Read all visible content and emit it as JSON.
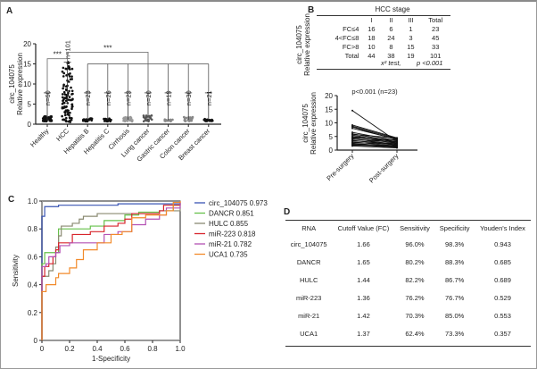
{
  "panels": {
    "a": "A",
    "b": "B",
    "c": "C",
    "d": "D"
  },
  "chart_data": [
    {
      "type": "scatter",
      "panel": "A",
      "ylabel": "circ_104075\nRelative expression",
      "ylabel_lines": [
        "circ_104075",
        "Relative expression"
      ],
      "ylim": [
        0,
        20
      ],
      "yticks": [
        0,
        5,
        10,
        15,
        20
      ],
      "categories": [
        "Healthy",
        "HCC",
        "Hepatitis B",
        "Hepatitis C",
        "Cirrhosis",
        "Lung cancer",
        "Gastric cancer",
        "Colon cancer",
        "Breast cancer"
      ],
      "n_labels": [
        "n=60",
        "n=101",
        "n=23",
        "n=26",
        "n=23",
        "n=20",
        "n=19",
        "n=30",
        "n=21"
      ],
      "approx_max": [
        2,
        15.5,
        1.5,
        1.5,
        1.8,
        2.2,
        1.2,
        1.8,
        1.3
      ],
      "approx_median": [
        1,
        5,
        1,
        1,
        1.1,
        1.2,
        1,
        1.1,
        1
      ],
      "point_colors": [
        "#111111",
        "#111111",
        "#111111",
        "#111111",
        "#999999",
        "#555555",
        "#888888",
        "#888888",
        "#111111"
      ],
      "annotations": [
        "***",
        "***"
      ]
    },
    {
      "type": "table",
      "panel": "B-top",
      "ylabel_lines": [
        "circ_104075",
        "Relative expression"
      ],
      "title": "HCC stage",
      "columns": [
        "",
        "I",
        "II",
        "III",
        "Total"
      ],
      "rows": [
        [
          "FC≤4",
          "16",
          "6",
          "1",
          "23"
        ],
        [
          "4<FC≤8",
          "18",
          "24",
          "3",
          "45"
        ],
        [
          "FC>8",
          "10",
          "8",
          "15",
          "33"
        ],
        [
          "Total",
          "44",
          "38",
          "19",
          "101"
        ]
      ],
      "footer_test": "x² test,",
      "footer_p": "p <0.001"
    },
    {
      "type": "line",
      "panel": "B-bottom",
      "ylabel_lines": [
        "circ_104075",
        "Relative expression"
      ],
      "ylim": [
        0,
        20
      ],
      "yticks": [
        0,
        5,
        10,
        15,
        20
      ],
      "categories": [
        "Pre-surgery",
        "Post-surgery"
      ],
      "annotation": "p<0.001 (n=23)",
      "pairs": [
        [
          14.5,
          3.2
        ],
        [
          9.2,
          4.5
        ],
        [
          8.8,
          4.2
        ],
        [
          8.5,
          3.8
        ],
        [
          8.0,
          4.0
        ],
        [
          6.5,
          3.5
        ],
        [
          6.0,
          3.0
        ],
        [
          5.8,
          4.4
        ],
        [
          5.5,
          2.8
        ],
        [
          5.0,
          3.6
        ],
        [
          4.8,
          2.5
        ],
        [
          4.5,
          3.2
        ],
        [
          4.2,
          2.0
        ],
        [
          4.0,
          2.8
        ],
        [
          3.6,
          1.8
        ],
        [
          3.4,
          2.4
        ],
        [
          3.0,
          1.5
        ],
        [
          2.8,
          2.2
        ],
        [
          2.5,
          1.2
        ],
        [
          2.2,
          1.6
        ],
        [
          2.0,
          1.0
        ],
        [
          1.8,
          1.4
        ],
        [
          1.5,
          0.8
        ]
      ]
    },
    {
      "type": "line",
      "panel": "C",
      "xlabel": "1-Specificity",
      "ylabel": "Sensitivity",
      "xlim": [
        0,
        1
      ],
      "ylim": [
        0,
        1
      ],
      "xticks": [
        "0",
        "0.2",
        "0.4",
        "0.6",
        "0.8",
        "1.0"
      ],
      "yticks": [
        "0",
        "0.2",
        "0.4",
        "0.6",
        "0.8",
        "1.0"
      ],
      "series": [
        {
          "name": "circ_104075",
          "auc": "0.973",
          "legend": "circ_104075 0.973",
          "color": "#3a55b4",
          "points": [
            [
              0,
              0
            ],
            [
              0,
              0.89
            ],
            [
              0.02,
              0.89
            ],
            [
              0.02,
              0.96
            ],
            [
              0.12,
              0.96
            ],
            [
              0.12,
              0.97
            ],
            [
              0.35,
              0.97
            ],
            [
              0.55,
              0.98
            ],
            [
              0.9,
              0.98
            ],
            [
              1,
              1
            ]
          ]
        },
        {
          "name": "DANCR",
          "auc": "0.851",
          "legend": "DANCR  0.851",
          "color": "#66c04a",
          "points": [
            [
              0,
              0
            ],
            [
              0,
              0.55
            ],
            [
              0.02,
              0.55
            ],
            [
              0.02,
              0.63
            ],
            [
              0.1,
              0.63
            ],
            [
              0.12,
              0.8
            ],
            [
              0.3,
              0.8
            ],
            [
              0.35,
              0.82
            ],
            [
              0.45,
              0.86
            ],
            [
              0.6,
              0.9
            ],
            [
              0.7,
              0.92
            ],
            [
              0.85,
              0.93
            ],
            [
              0.95,
              0.93
            ],
            [
              0.95,
              0.97
            ],
            [
              1,
              0.98
            ]
          ]
        },
        {
          "name": "HULC",
          "auc": "0.855",
          "legend": "HULC  0.855",
          "color": "#8a8a72",
          "points": [
            [
              0,
              0
            ],
            [
              0,
              0.46
            ],
            [
              0.03,
              0.46
            ],
            [
              0.05,
              0.5
            ],
            [
              0.08,
              0.55
            ],
            [
              0.1,
              0.67
            ],
            [
              0.12,
              0.75
            ],
            [
              0.14,
              0.82
            ],
            [
              0.22,
              0.84
            ],
            [
              0.27,
              0.87
            ],
            [
              0.3,
              0.89
            ],
            [
              0.4,
              0.91
            ],
            [
              0.6,
              0.91
            ],
            [
              0.85,
              0.93
            ],
            [
              0.99,
              0.93
            ],
            [
              1,
              0.96
            ]
          ]
        },
        {
          "name": "miR-223",
          "auc": "0.818",
          "legend": "miR-223  0.818",
          "color": "#d8252c",
          "points": [
            [
              0,
              0
            ],
            [
              0,
              0.46
            ],
            [
              0.02,
              0.46
            ],
            [
              0.02,
              0.53
            ],
            [
              0.05,
              0.55
            ],
            [
              0.08,
              0.6
            ],
            [
              0.1,
              0.65
            ],
            [
              0.12,
              0.7
            ],
            [
              0.22,
              0.7
            ],
            [
              0.22,
              0.76
            ],
            [
              0.35,
              0.78
            ],
            [
              0.45,
              0.82
            ],
            [
              0.55,
              0.84
            ],
            [
              0.6,
              0.87
            ],
            [
              0.65,
              0.91
            ],
            [
              0.85,
              0.93
            ],
            [
              0.88,
              0.97
            ],
            [
              1,
              0.99
            ]
          ]
        },
        {
          "name": "miR-21",
          "auc": "0.782",
          "legend": "miR-21  0.782",
          "color": "#b450b4",
          "points": [
            [
              0,
              0
            ],
            [
              0,
              0.53
            ],
            [
              0.03,
              0.55
            ],
            [
              0.05,
              0.6
            ],
            [
              0.1,
              0.63
            ],
            [
              0.13,
              0.68
            ],
            [
              0.2,
              0.7
            ],
            [
              0.35,
              0.7
            ],
            [
              0.45,
              0.76
            ],
            [
              0.55,
              0.78
            ],
            [
              0.65,
              0.83
            ],
            [
              0.75,
              0.87
            ],
            [
              0.85,
              0.9
            ],
            [
              0.9,
              0.95
            ],
            [
              1,
              0.99
            ]
          ]
        },
        {
          "name": "UCA1",
          "auc": "0.735",
          "legend": "UCA1  0.735",
          "color": "#f28a2a",
          "points": [
            [
              0,
              0
            ],
            [
              0,
              0.35
            ],
            [
              0.03,
              0.35
            ],
            [
              0.03,
              0.4
            ],
            [
              0.08,
              0.4
            ],
            [
              0.1,
              0.45
            ],
            [
              0.12,
              0.48
            ],
            [
              0.17,
              0.48
            ],
            [
              0.2,
              0.52
            ],
            [
              0.25,
              0.58
            ],
            [
              0.3,
              0.65
            ],
            [
              0.4,
              0.7
            ],
            [
              0.5,
              0.76
            ],
            [
              0.58,
              0.78
            ],
            [
              0.65,
              0.88
            ],
            [
              0.75,
              0.9
            ],
            [
              0.9,
              0.93
            ],
            [
              0.95,
              0.99
            ],
            [
              1,
              1
            ]
          ]
        }
      ]
    },
    {
      "type": "table",
      "panel": "D",
      "columns": [
        "RNA",
        "Cutoff Value (FC)",
        "Sensitivity",
        "Specificity",
        "Youden's Index"
      ],
      "rows": [
        [
          "circ_104075",
          "1.66",
          "96.0%",
          "98.3%",
          "0.943"
        ],
        [
          "DANCR",
          "1.65",
          "80.2%",
          "88.3%",
          "0.685"
        ],
        [
          "HULC",
          "1.44",
          "82.2%",
          "86.7%",
          "0.689"
        ],
        [
          "miR-223",
          "1.36",
          "76.2%",
          "76.7%",
          "0.529"
        ],
        [
          "miR-21",
          "1.42",
          "70.3%",
          "85.0%",
          "0.553"
        ],
        [
          "UCA1",
          "1.37",
          "62.4%",
          "73.3%",
          "0.357"
        ]
      ]
    }
  ]
}
